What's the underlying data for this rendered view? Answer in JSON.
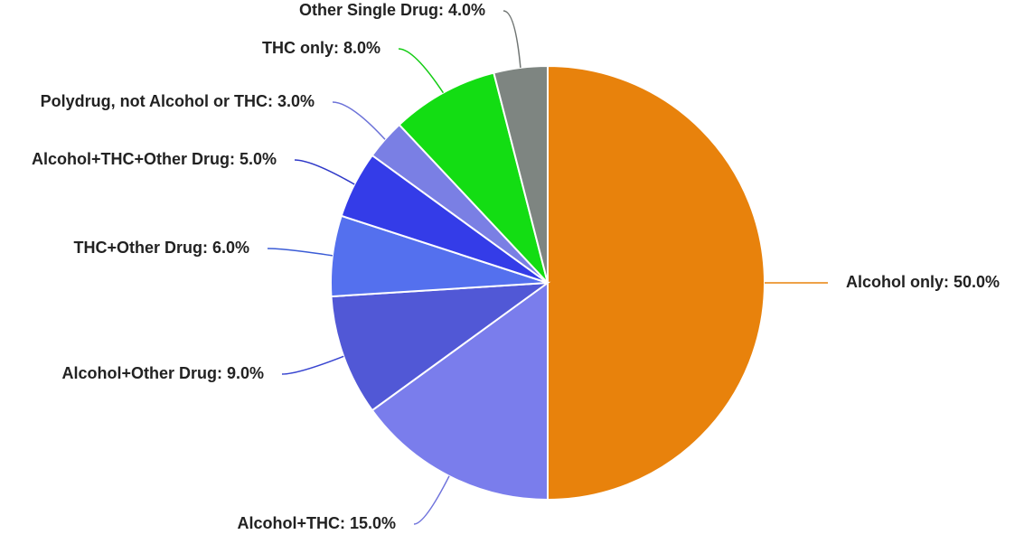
{
  "chart_data": {
    "type": "pie",
    "title": "",
    "start_angle_deg": 0,
    "direction": "clockwise",
    "slices": [
      {
        "label": "Alcohol only",
        "value": 50.0,
        "display": "Alcohol only: 50.0%",
        "color": "#E8820C"
      },
      {
        "label": "Alcohol+THC",
        "value": 15.0,
        "display": "Alcohol+THC: 15.0%",
        "color": "#7A7DEC"
      },
      {
        "label": "Alcohol+Other Drug",
        "value": 9.0,
        "display": "Alcohol+Other Drug: 9.0%",
        "color": "#5158D6"
      },
      {
        "label": "THC+Other Drug",
        "value": 6.0,
        "display": "THC+Other Drug: 6.0%",
        "color": "#5470EE"
      },
      {
        "label": "Alcohol+THC+Other Drug",
        "value": 5.0,
        "display": "Alcohol+THC+Other Drug: 5.0%",
        "color": "#343CE8"
      },
      {
        "label": "Polydrug, not Alcohol or THC",
        "value": 3.0,
        "display": "Polydrug, not Alcohol or THC: 3.0%",
        "color": "#7A7FE4"
      },
      {
        "label": "THC only",
        "value": 8.0,
        "display": "THC only: 8.0%",
        "color": "#13DD13"
      },
      {
        "label": "Other Single Drug",
        "value": 4.0,
        "display": "Other Single Drug: 4.0%",
        "color": "#7E8581"
      }
    ],
    "leader_colors": [
      "#E8820C",
      "#6F73DC",
      "#3845D0",
      "#3B5CD6",
      "#2E38C8",
      "#6C72D8",
      "#13CC13",
      "#707573"
    ]
  }
}
